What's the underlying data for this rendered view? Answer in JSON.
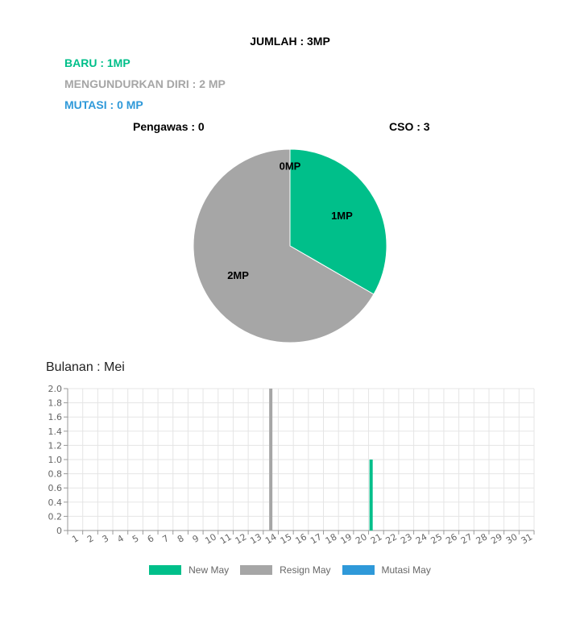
{
  "summary": {
    "total": "JUMLAH : 3MP",
    "baru": "BARU : 1MP",
    "resign": "MENGUNDURKAN DIRI : 2 MP",
    "mutasi": "MUTASI : 0 MP",
    "pengawas": "Pengawas : 0",
    "cso": "CSO : 3"
  },
  "colors": {
    "baru": "#00bf8a",
    "resign": "#a6a6a6",
    "mutasi": "#2f99d9"
  },
  "monthly_title": "Bulanan : Mei",
  "chart_data": [
    {
      "type": "pie",
      "slices": [
        {
          "key": "baru",
          "value": 1,
          "label": "1MP",
          "color": "#00bf8a"
        },
        {
          "key": "resign",
          "value": 2,
          "label": "2MP",
          "color": "#a6a6a6"
        },
        {
          "key": "mutasi",
          "value": 0,
          "label": "0MP",
          "color": "#2f99d9"
        }
      ]
    },
    {
      "type": "bar",
      "categories": [
        "1",
        "2",
        "3",
        "4",
        "5",
        "6",
        "7",
        "8",
        "9",
        "10",
        "11",
        "12",
        "13",
        "14",
        "15",
        "16",
        "17",
        "18",
        "19",
        "20",
        "21",
        "22",
        "23",
        "24",
        "25",
        "26",
        "27",
        "28",
        "29",
        "30",
        "31"
      ],
      "series": [
        {
          "name": "New May",
          "color": "#00bf8a",
          "values": [
            0,
            0,
            0,
            0,
            0,
            0,
            0,
            0,
            0,
            0,
            0,
            0,
            0,
            0,
            0,
            0,
            0,
            0,
            0,
            0,
            1,
            0,
            0,
            0,
            0,
            0,
            0,
            0,
            0,
            0,
            0
          ]
        },
        {
          "name": "Resign May",
          "color": "#a6a6a6",
          "values": [
            0,
            0,
            0,
            0,
            0,
            0,
            0,
            0,
            0,
            0,
            0,
            0,
            0,
            2,
            0,
            0,
            0,
            0,
            0,
            0,
            0,
            0,
            0,
            0,
            0,
            0,
            0,
            0,
            0,
            0,
            0
          ]
        },
        {
          "name": "Mutasi May",
          "color": "#2f99d9",
          "values": [
            0,
            0,
            0,
            0,
            0,
            0,
            0,
            0,
            0,
            0,
            0,
            0,
            0,
            0,
            0,
            0,
            0,
            0,
            0,
            0,
            0,
            0,
            0,
            0,
            0,
            0,
            0,
            0,
            0,
            0,
            0
          ]
        }
      ],
      "ylim": [
        0,
        2
      ],
      "yticks": [
        "0",
        "0.2",
        "0.4",
        "0.6",
        "0.8",
        "1.0",
        "1.2",
        "1.4",
        "1.6",
        "1.8",
        "2.0"
      ],
      "grid": true,
      "legend_position": "bottom"
    }
  ]
}
